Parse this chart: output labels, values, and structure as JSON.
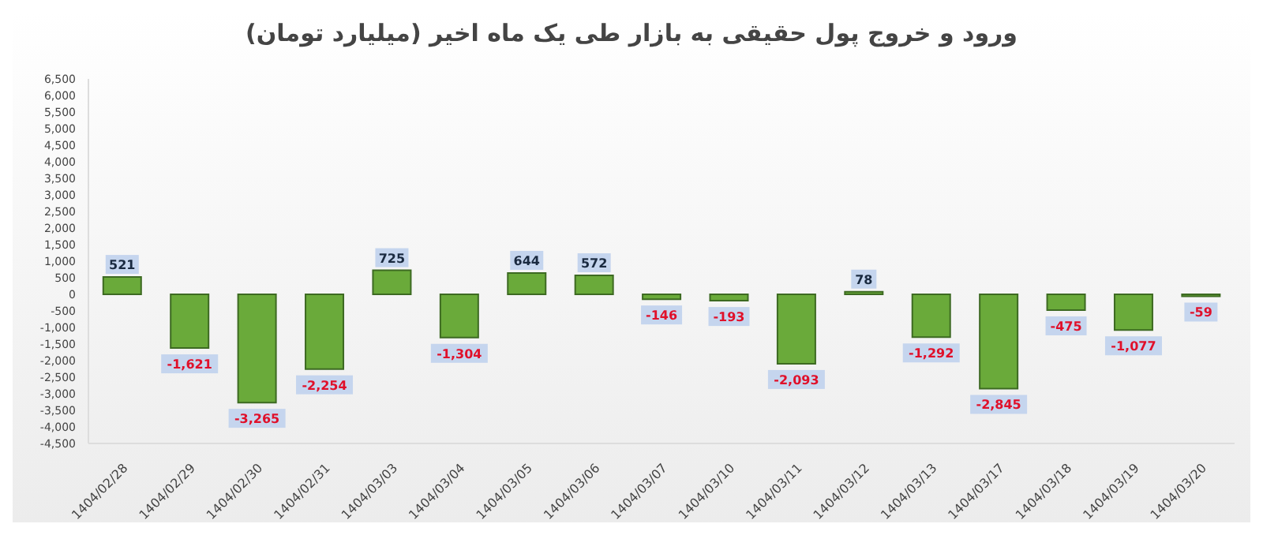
{
  "chart_data": {
    "type": "bar",
    "title": "ورود و خروج پول حقیقی به بازار طی یک ماه اخیر (میلیارد تومان)",
    "categories": [
      "1404/02/28",
      "1404/02/29",
      "1404/02/30",
      "1404/02/31",
      "1404/03/03",
      "1404/03/04",
      "1404/03/05",
      "1404/03/06",
      "1404/03/07",
      "1404/03/10",
      "1404/03/11",
      "1404/03/12",
      "1404/03/13",
      "1404/03/17",
      "1404/03/18",
      "1404/03/19",
      "1404/03/20"
    ],
    "values": [
      521,
      -1621,
      -3265,
      -2254,
      725,
      -1304,
      644,
      572,
      -146,
      -193,
      -2093,
      78,
      -1292,
      -2845,
      -475,
      -1077,
      -59
    ],
    "value_labels": [
      "521",
      "-1,621",
      "-3,265",
      "-2,254",
      "725",
      "-1,304",
      "644",
      "572",
      "-146",
      "-193",
      "-2,093",
      "78",
      "-1,292",
      "-2,845",
      "-475",
      "-1,077",
      "-59"
    ],
    "color": "#6aaa3a",
    "ylim": [
      -4500,
      6500
    ],
    "yticks": [
      {
        "value": -4500,
        "label": "-4,500"
      },
      {
        "value": -4000,
        "label": "-4,000"
      },
      {
        "value": -3500,
        "label": "-3,500"
      },
      {
        "value": -3000,
        "label": "-3,000"
      },
      {
        "value": -2500,
        "label": "-2,500"
      },
      {
        "value": -2000,
        "label": "-2,000"
      },
      {
        "value": -1500,
        "label": "-1,500"
      },
      {
        "value": -1000,
        "label": "-1,000"
      },
      {
        "value": -500,
        "label": "-500"
      },
      0,
      500,
      {
        "value": 1000,
        "label": "1,000"
      },
      {
        "value": 1500,
        "label": "1,500"
      },
      {
        "value": 2000,
        "label": "2,000"
      },
      {
        "value": 2500,
        "label": "2,500"
      },
      {
        "value": 3000,
        "label": "3,000"
      },
      {
        "value": 3500,
        "label": "3,500"
      },
      {
        "value": 4000,
        "label": "4,000"
      },
      {
        "value": 4500,
        "label": "4,500"
      },
      {
        "value": 5000,
        "label": "5,000"
      },
      {
        "value": 5500,
        "label": "5,500"
      },
      {
        "value": 6000,
        "label": "6,000"
      },
      {
        "value": 6500,
        "label": "6,500"
      }
    ],
    "grid": false,
    "legend": false
  }
}
